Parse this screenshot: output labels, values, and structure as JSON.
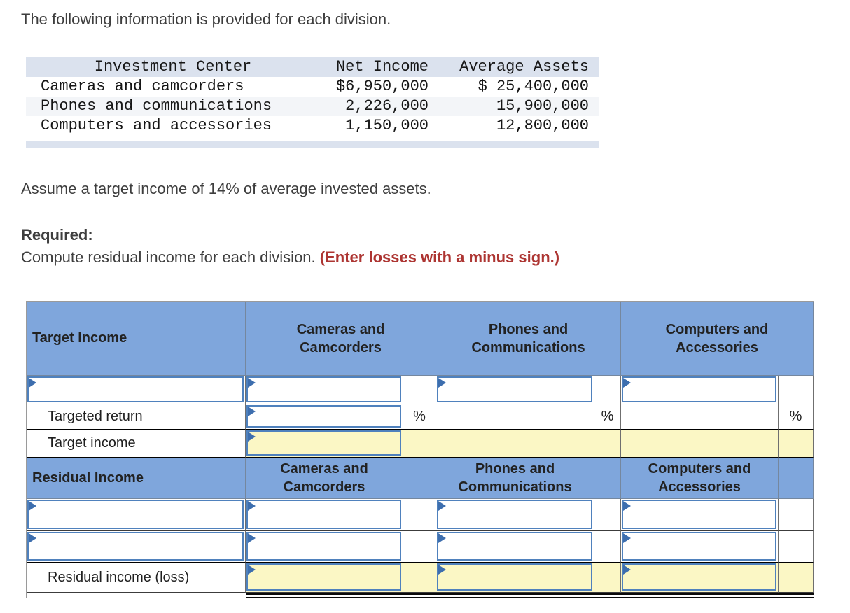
{
  "page": {
    "title_line": "The following information is provided for each division."
  },
  "info_table": {
    "col_headers": [
      "Investment Center",
      "Net Income",
      "Average Assets"
    ],
    "rows": [
      {
        "center": "Cameras and camcorders",
        "net_income": "$6,950,000",
        "avg_assets": "$ 25,400,000"
      },
      {
        "center": "Phones and communications",
        "net_income": "2,226,000",
        "avg_assets": "15,900,000"
      },
      {
        "center": "Computers and accessories",
        "net_income": "1,150,000",
        "avg_assets": "12,800,000"
      }
    ]
  },
  "instructions": {
    "assumption": "Assume a target income of 14% of average invested assets.",
    "required_label": "Required:",
    "task": "Compute residual income for each division.",
    "emphasis": "(Enter losses with a minus sign.)"
  },
  "worksheet": {
    "sections": {
      "target_income": {
        "title": "Target Income"
      },
      "residual_income": {
        "title": "Residual Income"
      }
    },
    "columns": {
      "cameras": "Cameras and\nCamcorders",
      "phones": "Phones and\nCommunications",
      "computers": "Computers and\nAccessories"
    },
    "row_labels": {
      "targeted_return": "Targeted return",
      "target_income": "Target income",
      "residual_income_loss": "Residual income (loss)"
    },
    "percent_symbol": "%"
  },
  "colors": {
    "header_blue": "#7FA6DC",
    "input_yellow": "#FBF7C5",
    "input_border_blue": "#4F81BD",
    "flag_blue": "#3D6EAE",
    "band_blue_gray": "#DBE2EE",
    "alt_row_gray": "#F3F5F8",
    "emphasis_red": "#AD3532"
  }
}
